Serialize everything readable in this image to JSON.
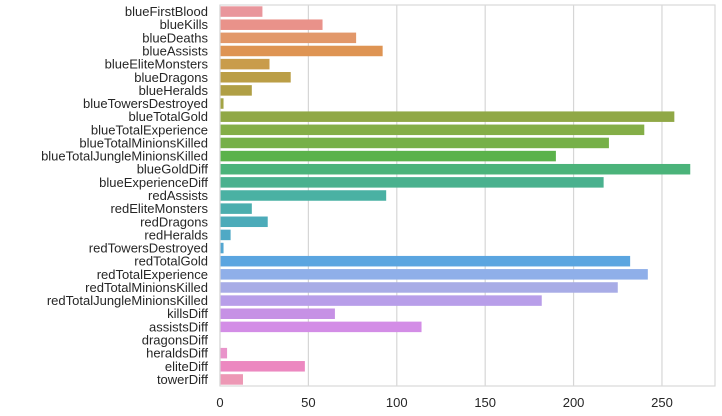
{
  "chart_data": {
    "type": "bar",
    "orientation": "horizontal",
    "title": "",
    "xlabel": "",
    "ylabel": "",
    "xlim": [
      0,
      280
    ],
    "xticks": [
      0,
      50,
      100,
      150,
      200,
      250
    ],
    "grid": "vertical",
    "categories": [
      "blueFirstBlood",
      "blueKills",
      "blueDeaths",
      "blueAssists",
      "blueEliteMonsters",
      "blueDragons",
      "blueHeralds",
      "blueTowersDestroyed",
      "blueTotalGold",
      "blueTotalExperience",
      "blueTotalMinionsKilled",
      "blueTotalJungleMinionsKilled",
      "blueGoldDiff",
      "blueExperienceDiff",
      "redAssists",
      "redEliteMonsters",
      "redDragons",
      "redHeralds",
      "redTowersDestroyed",
      "redTotalGold",
      "redTotalExperience",
      "redTotalMinionsKilled",
      "redTotalJungleMinionsKilled",
      "killsDiff",
      "assistsDiff",
      "dragonsDiff",
      "heraldsDiff",
      "eliteDiff",
      "towerDiff"
    ],
    "values": [
      24,
      58,
      77,
      92,
      28,
      40,
      18,
      2,
      257,
      240,
      220,
      190,
      266,
      217,
      94,
      18,
      27,
      6,
      2,
      232,
      242,
      225,
      182,
      65,
      114,
      0,
      4,
      48,
      13
    ],
    "colors": [
      "#e9969c",
      "#e9928a",
      "#e2986a",
      "#de9453",
      "#c99c4b",
      "#bb9e46",
      "#b09f45",
      "#a3a445",
      "#90a846",
      "#84ae47",
      "#76b048",
      "#5bb24b",
      "#4bb37a",
      "#4ab18e",
      "#4ab1a3",
      "#4baeae",
      "#4cabb9",
      "#4fa9c5",
      "#53a6d1",
      "#5ba5e0",
      "#8fafe9",
      "#a8ace6",
      "#b89ee9",
      "#c691e5",
      "#d38de6",
      "#e088d8",
      "#e993ca",
      "#ec88c0",
      "#ed98b5"
    ]
  }
}
